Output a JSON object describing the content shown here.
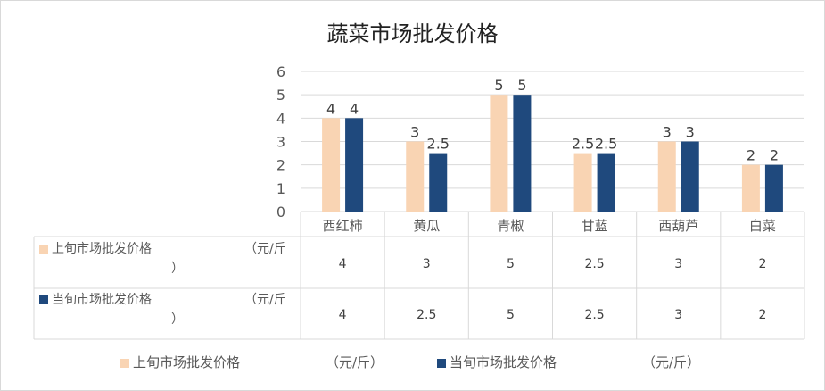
{
  "chart_data": {
    "type": "bar",
    "title": "蔬菜市场批发价格",
    "categories": [
      "西红柿",
      "黄瓜",
      "青椒",
      "甘蓝",
      "西葫芦",
      "白菜"
    ],
    "series": [
      {
        "name": "上旬市场批发价格          （元/斤）",
        "label_short": "上旬市场批发价格",
        "unit": "（元/斤",
        "unit_tail": "）",
        "color": "#F9D4B3",
        "values": [
          4,
          3,
          5,
          2.5,
          3,
          2
        ],
        "labels": [
          "4",
          "3",
          "5",
          "2.5",
          "3",
          "2"
        ]
      },
      {
        "name": "当旬市场批发价格          （元/斤）",
        "label_short": "当旬市场批发价格",
        "unit": "（元/斤",
        "unit_tail": "）",
        "color": "#1F497D",
        "values": [
          4,
          2.5,
          5,
          2.5,
          3,
          2
        ],
        "labels": [
          "4",
          "2.5",
          "5",
          "2.5",
          "3",
          "2"
        ]
      }
    ],
    "ylim": [
      0,
      6
    ],
    "yticks": [
      "0",
      "1",
      "2",
      "3",
      "4",
      "5",
      "6"
    ],
    "grid": true,
    "data_table": true,
    "legend_placement": "bottom",
    "legend": [
      "上旬市场批发价格",
      "（元/斤）",
      "当旬市场批发价格",
      "（元/斤）"
    ]
  }
}
